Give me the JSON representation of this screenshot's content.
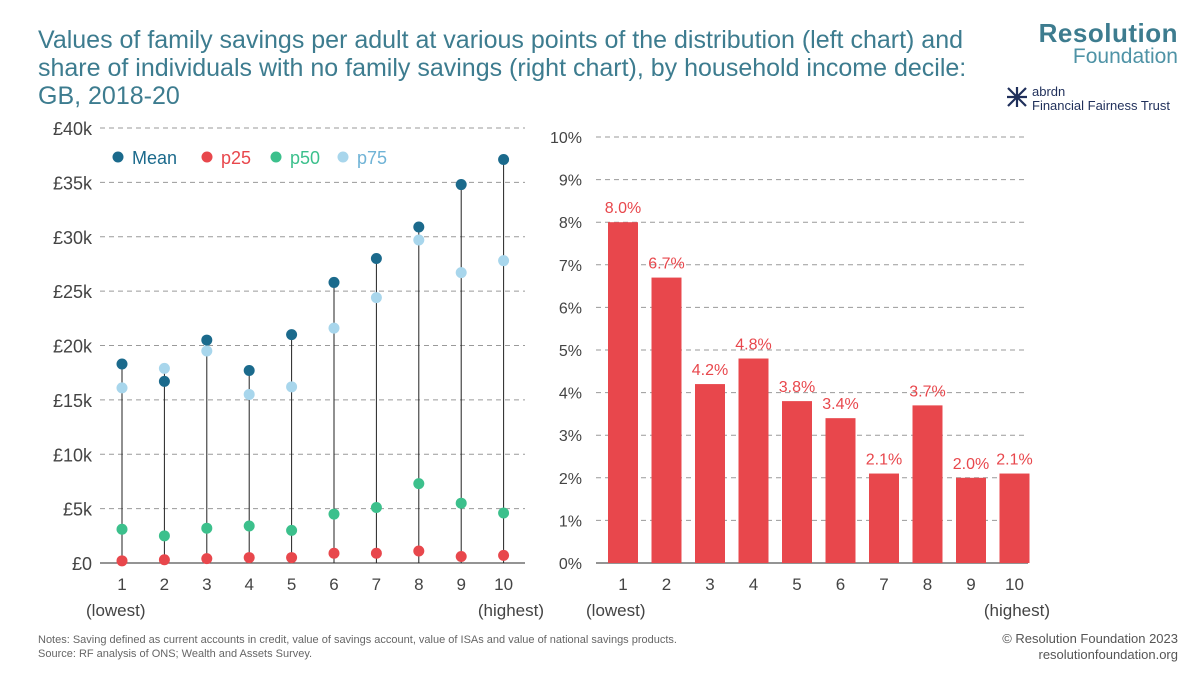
{
  "title": "Values of family savings per adult at various points of the distribution (left chart) and share of individuals with no family savings (right chart), by household income decile: GB, 2018-20",
  "logo": {
    "line1": "Resolution",
    "line2": "Foundation"
  },
  "partner": {
    "line1": "abrdn",
    "line2": "Financial Fairness Trust"
  },
  "notes": {
    "line1": "Notes: Saving defined as current accounts in credit, value of savings account, value of ISAs and value of national savings products.",
    "line2": "Source: RF analysis of ONS; Wealth and Assets Survey."
  },
  "credit": {
    "line1": "© Resolution Foundation 2023",
    "line2": "resolutionfoundation.org"
  },
  "colors": {
    "mean": "#1b6a8c",
    "p25": "#e8474c",
    "p50": "#3cc08c",
    "p75": "#a8d6ec",
    "bar": "#e8474c",
    "text": "#3d7c8f"
  },
  "chart_data": [
    {
      "type": "scatter",
      "categories": [
        "1",
        "2",
        "3",
        "4",
        "5",
        "6",
        "7",
        "8",
        "9",
        "10"
      ],
      "category_sublabels": {
        "first": "(lowest)",
        "last": "(highest)"
      },
      "yticks": [
        "£0",
        "£5k",
        "£10k",
        "£15k",
        "£20k",
        "£25k",
        "£30k",
        "£35k",
        "£40k"
      ],
      "ylim": [
        0,
        40000
      ],
      "legend_position": "top-left",
      "series": [
        {
          "name": "Mean",
          "values": [
            18300,
            16700,
            20500,
            17700,
            21000,
            25800,
            28000,
            30900,
            34800,
            37100
          ]
        },
        {
          "name": "p25",
          "values": [
            200,
            300,
            400,
            500,
            500,
            900,
            900,
            1100,
            600,
            700
          ]
        },
        {
          "name": "p50",
          "values": [
            3100,
            2500,
            3200,
            3400,
            3000,
            4500,
            5100,
            7300,
            5500,
            4600
          ]
        },
        {
          "name": "p75",
          "values": [
            16100,
            17900,
            19500,
            15500,
            16200,
            21600,
            24400,
            29700,
            26700,
            27800
          ]
        }
      ]
    },
    {
      "type": "bar",
      "categories": [
        "1",
        "2",
        "3",
        "4",
        "5",
        "6",
        "7",
        "8",
        "9",
        "10"
      ],
      "category_sublabels": {
        "first": "(lowest)",
        "last": "(highest)"
      },
      "yticks": [
        "0%",
        "1%",
        "2%",
        "3%",
        "4%",
        "5%",
        "6%",
        "7%",
        "8%",
        "9%",
        "10%"
      ],
      "ylim": [
        0,
        10
      ],
      "values": [
        8.0,
        6.7,
        4.2,
        4.8,
        3.8,
        3.4,
        2.1,
        3.7,
        2.0,
        2.1
      ],
      "labels": [
        "8.0%",
        "6.7%",
        "4.2%",
        "4.8%",
        "3.8%",
        "3.4%",
        "2.1%",
        "3.7%",
        "2.0%",
        "2.1%"
      ]
    }
  ]
}
